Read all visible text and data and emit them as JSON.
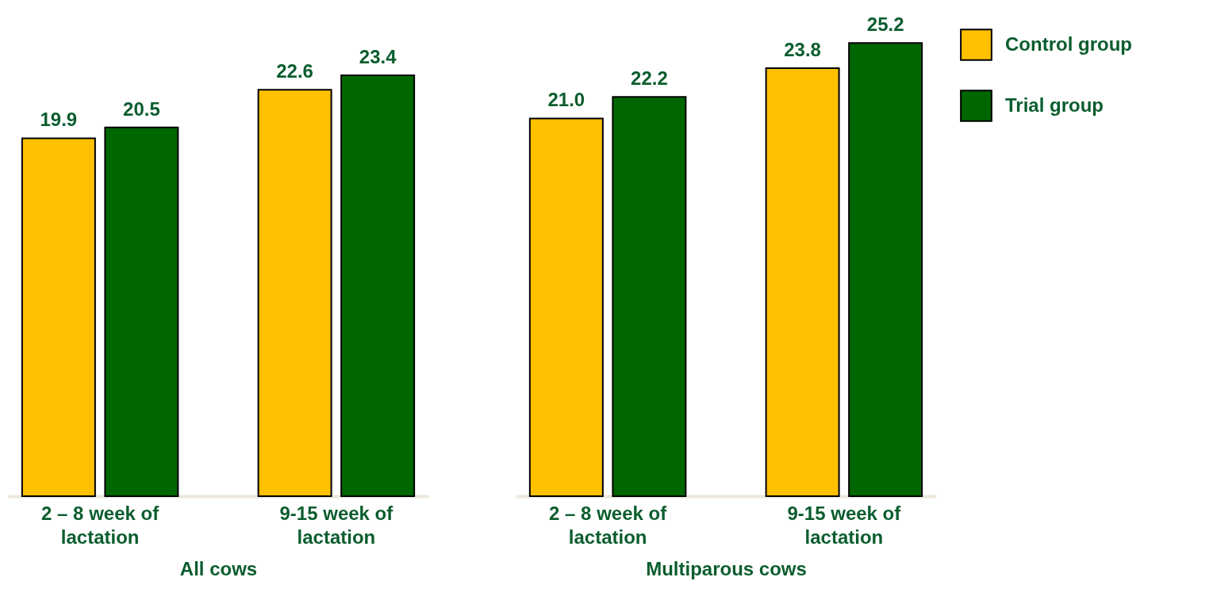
{
  "chart_data": [
    {
      "type": "bar",
      "xlabel": "All cows",
      "categories": [
        "2 – 8 week of lactation",
        "9-15 week of lactation"
      ],
      "series": [
        {
          "color": "#ffc000",
          "values": [
            19.9,
            22.6
          ],
          "value_labels": [
            "19.9",
            "22.6"
          ]
        },
        {
          "color": "#006600",
          "values": [
            20.5,
            23.4
          ],
          "value_labels": [
            "20.5",
            "23.4"
          ]
        }
      ],
      "tick_labels": "x"
    },
    {
      "type": "bar",
      "xlabel": "Multiparous cows",
      "categories": [
        "2 – 8 week of lactation",
        "9-15 week of lactation"
      ],
      "series": [
        {
          "name": "Control group",
          "color": "#ffc000",
          "values": [
            21.0,
            23.8
          ],
          "value_labels": [
            "21.0",
            "23.8"
          ]
        },
        {
          "name": "Trial group",
          "color": "#006600",
          "values": [
            22.2,
            25.2
          ],
          "value_labels": [
            "22.2",
            "25.2"
          ]
        }
      ],
      "tick_labels": "x",
      "legend": "top right"
    }
  ]
}
